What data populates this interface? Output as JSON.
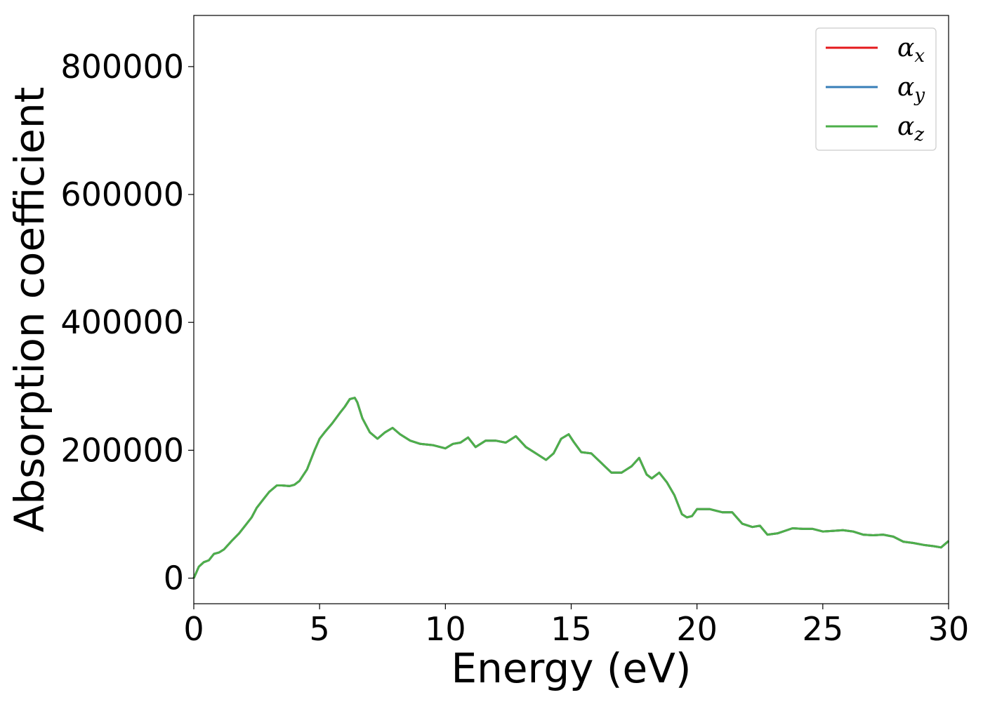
{
  "chart_data": {
    "type": "line",
    "title": "",
    "xlabel": "Energy (eV)",
    "ylabel": "Absorption coefficient",
    "xlim": [
      0,
      30
    ],
    "ylim": [
      -40000,
      880000
    ],
    "x_ticks": [
      0,
      5,
      10,
      15,
      20,
      25,
      30
    ],
    "y_ticks": [
      0,
      200000,
      400000,
      600000,
      800000
    ],
    "grid": false,
    "legend_position": "top-right",
    "series": [
      {
        "name": "α_x",
        "legend_base": "α",
        "legend_sub": "x",
        "color": "#e41a1c",
        "x": [
          0,
          0.2,
          0.4,
          0.6,
          0.8,
          1.0,
          1.2,
          1.5,
          1.8,
          2.0,
          2.3,
          2.5,
          2.8,
          3.0,
          3.3,
          3.5,
          3.8,
          4.0,
          4.2,
          4.5,
          4.8,
          5.0,
          5.2,
          5.5,
          5.8,
          6.0,
          6.2,
          6.4,
          6.5,
          6.7,
          7.0,
          7.3,
          7.6,
          7.9,
          8.2,
          8.6,
          9.0,
          9.5,
          10.0,
          10.3,
          10.6,
          10.9,
          11.2,
          11.6,
          12.0,
          12.4,
          12.8,
          13.2,
          13.6,
          14.0,
          14.3,
          14.6,
          14.9,
          15.1,
          15.4,
          15.8,
          16.2,
          16.6,
          17.0,
          17.4,
          17.7,
          18.0,
          18.2,
          18.5,
          18.8,
          19.1,
          19.4,
          19.6,
          19.8,
          20.0,
          20.5,
          21.0,
          21.4,
          21.8,
          22.2,
          22.5,
          22.8,
          23.2,
          23.8,
          24.2,
          24.6,
          25.0,
          25.4,
          25.8,
          26.2,
          26.6,
          27.0,
          27.4,
          27.8,
          28.2,
          28.6,
          29.0,
          29.4,
          29.7,
          30.0
        ],
        "y": [
          0,
          18000,
          25000,
          28000,
          38000,
          40000,
          45000,
          58000,
          70000,
          80000,
          95000,
          110000,
          125000,
          135000,
          145000,
          145000,
          144000,
          146000,
          152000,
          170000,
          200000,
          218000,
          228000,
          242000,
          258000,
          268000,
          280000,
          282000,
          275000,
          250000,
          228000,
          218000,
          228000,
          235000,
          225000,
          215000,
          210000,
          208000,
          203000,
          210000,
          212000,
          220000,
          205000,
          215000,
          215000,
          212000,
          222000,
          205000,
          195000,
          185000,
          195000,
          218000,
          225000,
          213000,
          197000,
          195000,
          180000,
          165000,
          165000,
          175000,
          188000,
          162000,
          156000,
          165000,
          150000,
          130000,
          100000,
          95000,
          97000,
          108000,
          108000,
          103000,
          103000,
          85000,
          80000,
          82000,
          68000,
          70000,
          78000,
          77000,
          77000,
          73000,
          74000,
          75000,
          73000,
          68000,
          67000,
          68000,
          65000,
          57000,
          55000,
          52000,
          50000,
          48000,
          58000
        ]
      },
      {
        "name": "α_y",
        "legend_base": "α",
        "legend_sub": "y",
        "color": "#377eb8",
        "x": [
          0,
          0.2,
          0.4,
          0.6,
          0.8,
          1.0,
          1.2,
          1.5,
          1.8,
          2.0,
          2.3,
          2.5,
          2.8,
          3.0,
          3.3,
          3.5,
          3.8,
          4.0,
          4.2,
          4.5,
          4.8,
          5.0,
          5.2,
          5.5,
          5.8,
          6.0,
          6.2,
          6.4,
          6.5,
          6.7,
          7.0,
          7.3,
          7.6,
          7.9,
          8.2,
          8.6,
          9.0,
          9.5,
          10.0,
          10.3,
          10.6,
          10.9,
          11.2,
          11.6,
          12.0,
          12.4,
          12.8,
          13.2,
          13.6,
          14.0,
          14.3,
          14.6,
          14.9,
          15.1,
          15.4,
          15.8,
          16.2,
          16.6,
          17.0,
          17.4,
          17.7,
          18.0,
          18.2,
          18.5,
          18.8,
          19.1,
          19.4,
          19.6,
          19.8,
          20.0,
          20.5,
          21.0,
          21.4,
          21.8,
          22.2,
          22.5,
          22.8,
          23.2,
          23.8,
          24.2,
          24.6,
          25.0,
          25.4,
          25.8,
          26.2,
          26.6,
          27.0,
          27.4,
          27.8,
          28.2,
          28.6,
          29.0,
          29.4,
          29.7,
          30.0
        ],
        "y": [
          0,
          18000,
          25000,
          28000,
          38000,
          40000,
          45000,
          58000,
          70000,
          80000,
          95000,
          110000,
          125000,
          135000,
          145000,
          145000,
          144000,
          146000,
          152000,
          170000,
          200000,
          218000,
          228000,
          242000,
          258000,
          268000,
          280000,
          282000,
          275000,
          250000,
          228000,
          218000,
          228000,
          235000,
          225000,
          215000,
          210000,
          208000,
          203000,
          210000,
          212000,
          220000,
          205000,
          215000,
          215000,
          212000,
          222000,
          205000,
          195000,
          185000,
          195000,
          218000,
          225000,
          213000,
          197000,
          195000,
          180000,
          165000,
          165000,
          175000,
          188000,
          162000,
          156000,
          165000,
          150000,
          130000,
          100000,
          95000,
          97000,
          108000,
          108000,
          103000,
          103000,
          85000,
          80000,
          82000,
          68000,
          70000,
          78000,
          77000,
          77000,
          73000,
          74000,
          75000,
          73000,
          68000,
          67000,
          68000,
          65000,
          57000,
          55000,
          52000,
          50000,
          48000,
          58000
        ]
      },
      {
        "name": "α_z",
        "legend_base": "α",
        "legend_sub": "z",
        "color": "#4daf4a",
        "x": [
          0,
          0.2,
          0.4,
          0.6,
          0.8,
          1.0,
          1.2,
          1.5,
          1.8,
          2.0,
          2.3,
          2.5,
          2.8,
          3.0,
          3.3,
          3.5,
          3.8,
          4.0,
          4.2,
          4.5,
          4.8,
          5.0,
          5.2,
          5.5,
          5.8,
          6.0,
          6.2,
          6.4,
          6.5,
          6.7,
          7.0,
          7.3,
          7.6,
          7.9,
          8.2,
          8.6,
          9.0,
          9.5,
          10.0,
          10.3,
          10.6,
          10.9,
          11.2,
          11.6,
          12.0,
          12.4,
          12.8,
          13.2,
          13.6,
          14.0,
          14.3,
          14.6,
          14.9,
          15.1,
          15.4,
          15.8,
          16.2,
          16.6,
          17.0,
          17.4,
          17.7,
          18.0,
          18.2,
          18.5,
          18.8,
          19.1,
          19.4,
          19.6,
          19.8,
          20.0,
          20.5,
          21.0,
          21.4,
          21.8,
          22.2,
          22.5,
          22.8,
          23.2,
          23.8,
          24.2,
          24.6,
          25.0,
          25.4,
          25.8,
          26.2,
          26.6,
          27.0,
          27.4,
          27.8,
          28.2,
          28.6,
          29.0,
          29.4,
          29.7,
          30.0
        ],
        "y": [
          0,
          18000,
          25000,
          28000,
          38000,
          40000,
          45000,
          58000,
          70000,
          80000,
          95000,
          110000,
          125000,
          135000,
          145000,
          145000,
          144000,
          146000,
          152000,
          170000,
          200000,
          218000,
          228000,
          242000,
          258000,
          268000,
          280000,
          282000,
          275000,
          250000,
          228000,
          218000,
          228000,
          235000,
          225000,
          215000,
          210000,
          208000,
          203000,
          210000,
          212000,
          220000,
          205000,
          215000,
          215000,
          212000,
          222000,
          205000,
          195000,
          185000,
          195000,
          218000,
          225000,
          213000,
          197000,
          195000,
          180000,
          165000,
          165000,
          175000,
          188000,
          162000,
          156000,
          165000,
          150000,
          130000,
          100000,
          95000,
          97000,
          108000,
          108000,
          103000,
          103000,
          85000,
          80000,
          82000,
          68000,
          70000,
          78000,
          77000,
          77000,
          73000,
          74000,
          75000,
          73000,
          68000,
          67000,
          68000,
          65000,
          57000,
          55000,
          52000,
          50000,
          48000,
          58000
        ]
      }
    ]
  }
}
